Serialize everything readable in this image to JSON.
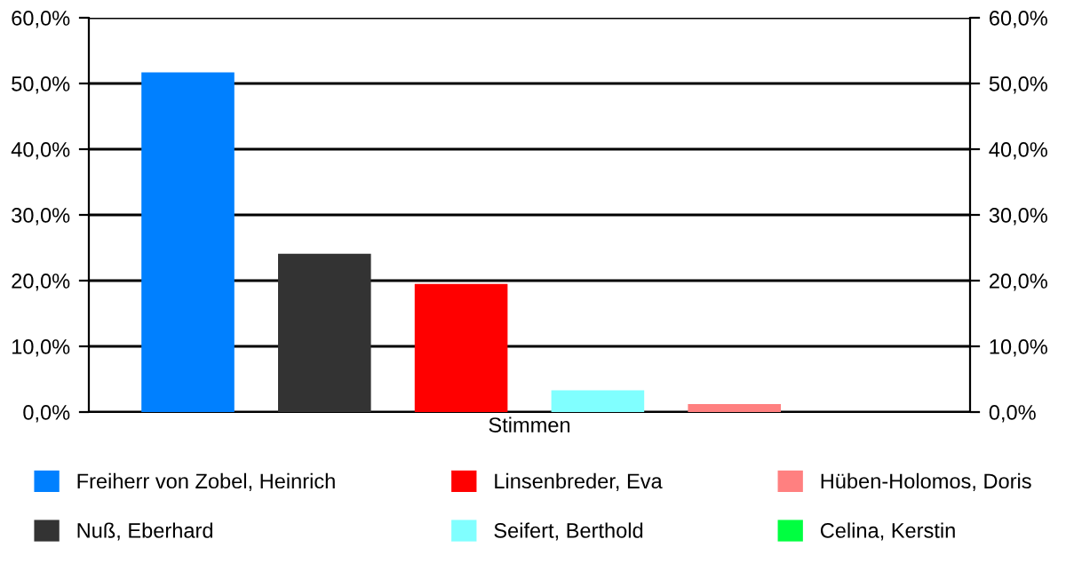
{
  "chart_data": {
    "type": "bar",
    "categories": [
      "Stimmen"
    ],
    "series": [
      {
        "name": "Freiherr von Zobel, Heinrich",
        "color": "#0080ff",
        "values": [
          51.7
        ]
      },
      {
        "name": "Nuß, Eberhard",
        "color": "#333333",
        "values": [
          24.1
        ]
      },
      {
        "name": "Linsenbreder, Eva",
        "color": "#ff0000",
        "values": [
          19.5
        ]
      },
      {
        "name": "Seifert, Berthold",
        "color": "#80ffff",
        "values": [
          3.3
        ]
      },
      {
        "name": "Hüben-Holomos, Doris",
        "color": "#ff8080",
        "values": [
          1.2
        ]
      },
      {
        "name": "Celina, Kerstin",
        "color": "#00ff40",
        "values": [
          0
        ]
      }
    ],
    "ylim": [
      0,
      60
    ],
    "yticks": [
      {
        "value": 0,
        "label": "0,0%"
      },
      {
        "value": 10,
        "label": "10,0%"
      },
      {
        "value": 20,
        "label": "20,0%"
      },
      {
        "value": 30,
        "label": "30,0%"
      },
      {
        "value": 40,
        "label": "40,0%"
      },
      {
        "value": 50,
        "label": "50,0%"
      },
      {
        "value": 60,
        "label": "60,0%"
      }
    ],
    "grid": "y",
    "legend": "bottom"
  }
}
